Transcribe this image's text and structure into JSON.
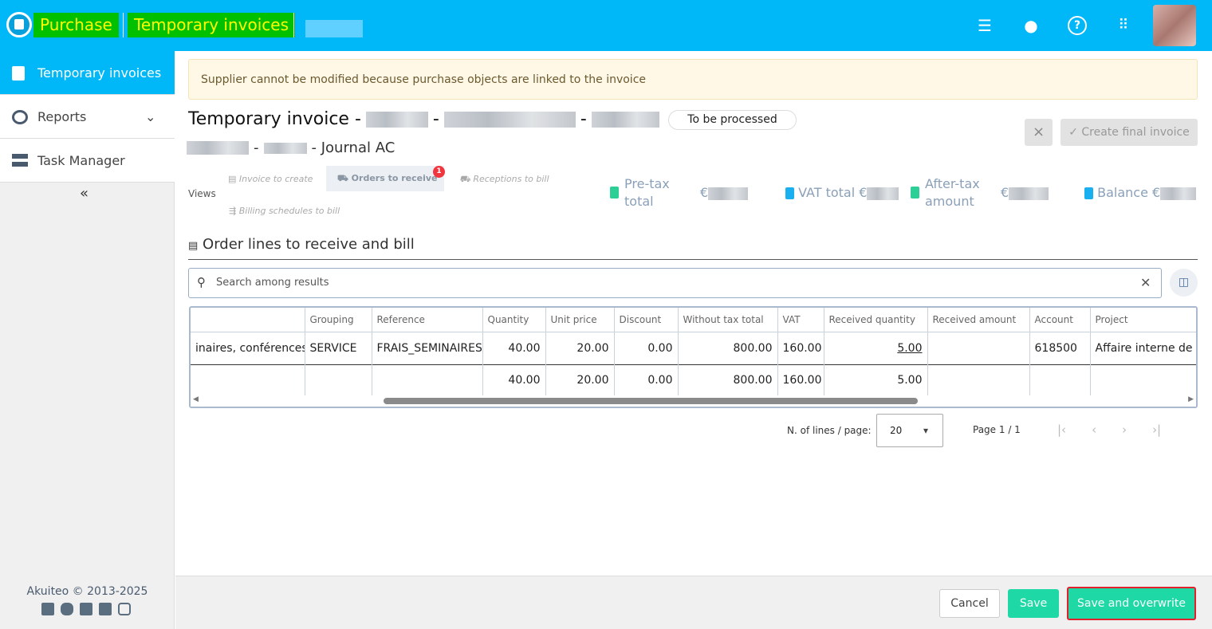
{
  "header": {
    "breadcrumb": [
      "Purchase",
      "Temporary invoices"
    ],
    "icons": [
      "sliders-icon",
      "lightbulb-icon",
      "help-icon",
      "apps-grid-icon"
    ]
  },
  "sidebar": {
    "items": [
      {
        "label": "Temporary invoices",
        "icon": "invoice-clock-icon",
        "active": true
      },
      {
        "label": "Reports",
        "icon": "chart-icon"
      },
      {
        "label": "Task Manager",
        "icon": "server-icon"
      }
    ],
    "collapse": "«",
    "footer": "Akuiteo © 2013-2025",
    "social": [
      "akuiteo",
      "bluesky",
      "linkedin",
      "facebook",
      "instagram"
    ]
  },
  "alert": "Supplier cannot be modified because purchase objects are linked to the invoice",
  "invoice": {
    "title": "Temporary invoice -",
    "subtitle": "- Journal AC",
    "status": "To be processed",
    "cancel": "×",
    "create_final": "✓ Create final invoice"
  },
  "views": {
    "label": "Views",
    "tabs": [
      {
        "label": "Invoice to create"
      },
      {
        "label": "Orders to receive",
        "badge": "1",
        "active": true
      },
      {
        "label": "Receptions to bill"
      },
      {
        "label": "Billing schedules to bill"
      }
    ]
  },
  "totals": [
    {
      "label": "Pre-tax total",
      "value": "€"
    },
    {
      "label": "VAT total",
      "value": "€"
    },
    {
      "label": "After-tax amount",
      "value": "€"
    },
    {
      "label": "Balance",
      "value": "€"
    }
  ],
  "section": {
    "title": "Order lines to receive and bill",
    "search_placeholder": "Search among results"
  },
  "table": {
    "columns": [
      "",
      "Grouping",
      "Reference",
      "Quantity",
      "Unit price",
      "Discount",
      "Without tax total",
      "VAT",
      "Received quantity",
      "Received amount",
      "Account",
      "Project"
    ],
    "rows": [
      [
        "inaires, conférences",
        "SERVICE",
        "FRAIS_SEMINAIRES",
        "40.00",
        "20.00",
        "0.00",
        "800.00",
        "160.00",
        "5.00",
        "",
        "618500",
        "Affaire interne de l"
      ]
    ],
    "totals": [
      "",
      "",
      "",
      "40.00",
      "20.00",
      "0.00",
      "800.00",
      "160.00",
      "5.00",
      "",
      "",
      ""
    ]
  },
  "pagination": {
    "lines_label": "N. of lines / page:",
    "lines_value": "20",
    "page": "Page 1 / 1"
  },
  "footer": {
    "cancel": "Cancel",
    "save": "Save",
    "save_overwrite": "Save and overwrite"
  }
}
